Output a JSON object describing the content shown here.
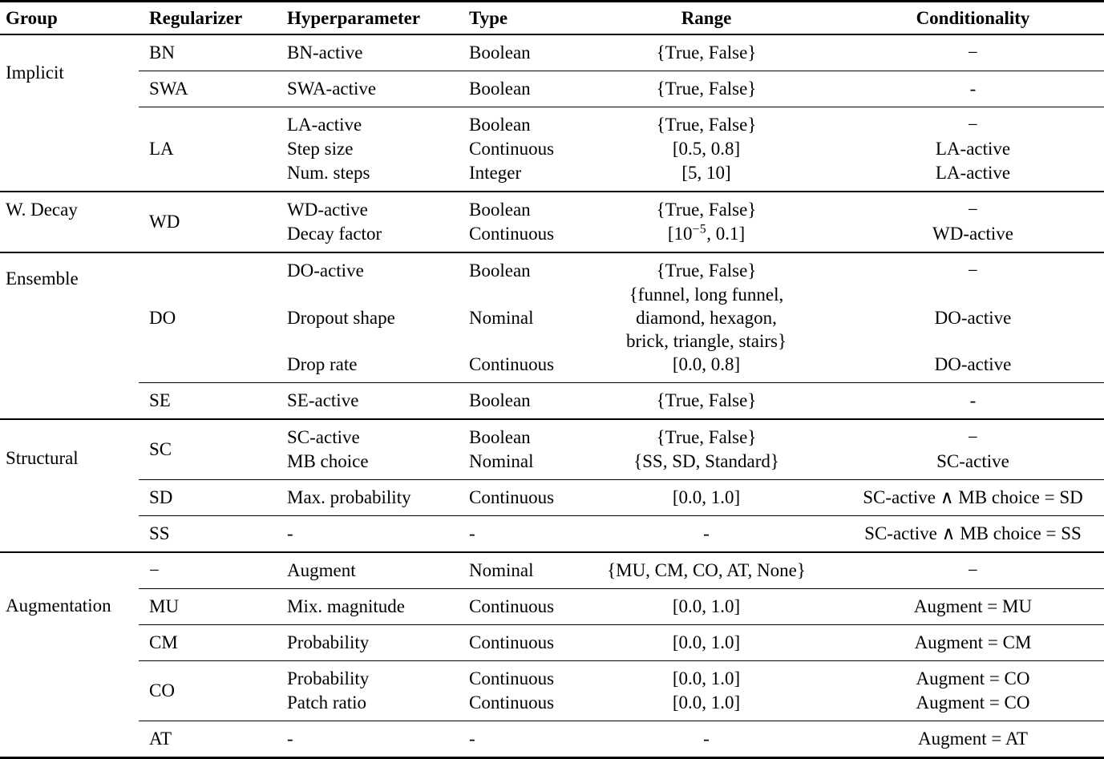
{
  "header": {
    "group": "Group",
    "regularizer": "Regularizer",
    "hyperparameter": "Hyperparameter",
    "type": "Type",
    "range": "Range",
    "conditionality": "Conditionality"
  },
  "groups": [
    {
      "label": "Implicit",
      "blocks": [
        {
          "regularizer": "BN",
          "rows": [
            {
              "hyperparameter": "BN-active",
              "type": "Boolean",
              "range": "{True, False}",
              "conditionality": "−"
            }
          ]
        },
        {
          "regularizer": "SWA",
          "rows": [
            {
              "hyperparameter": "SWA-active",
              "type": "Boolean",
              "range": "{True, False}",
              "conditionality": "-"
            }
          ]
        },
        {
          "regularizer": "LA",
          "rows": [
            {
              "hyperparameter": "LA-active",
              "type": "Boolean",
              "range": "{True, False}",
              "conditionality": "−"
            },
            {
              "hyperparameter": "Step size",
              "type": "Continuous",
              "range": "[0.5, 0.8]",
              "conditionality": "LA-active"
            },
            {
              "hyperparameter": "Num. steps",
              "type": "Integer",
              "range": "[5, 10]",
              "conditionality": "LA-active"
            }
          ]
        }
      ]
    },
    {
      "label": "W. Decay",
      "blocks": [
        {
          "regularizer": "WD",
          "rows": [
            {
              "hyperparameter": "WD-active",
              "type": "Boolean",
              "range": "{True, False}",
              "conditionality": "−"
            },
            {
              "hyperparameter": "Decay factor",
              "type": "Continuous",
              "range_parts": {
                "pre": "[10",
                "sup": "−5",
                "post": ", 0.1]"
              },
              "conditionality": "WD-active"
            }
          ]
        }
      ]
    },
    {
      "label": "Ensemble",
      "blocks": [
        {
          "regularizer": "DO",
          "rows": [
            {
              "hyperparameter": "DO-active",
              "type": "Boolean",
              "range": "{True, False}",
              "conditionality": "−"
            },
            {
              "hyperparameter": "Dropout shape",
              "type": "Nominal",
              "range_lines": [
                "{funnel, long funnel,",
                "diamond, hexagon,",
                "brick, triangle, stairs}"
              ],
              "conditionality": "DO-active"
            },
            {
              "hyperparameter": "Drop rate",
              "type": "Continuous",
              "range": "[0.0, 0.8]",
              "conditionality": "DO-active"
            }
          ]
        },
        {
          "regularizer": "SE",
          "rows": [
            {
              "hyperparameter": "SE-active",
              "type": "Boolean",
              "range": "{True, False}",
              "conditionality": "-"
            }
          ]
        }
      ]
    },
    {
      "label": "Structural",
      "blocks": [
        {
          "regularizer": "SC",
          "rows": [
            {
              "hyperparameter": "SC-active",
              "type": "Boolean",
              "range": "{True, False}",
              "conditionality": "−"
            },
            {
              "hyperparameter": "MB choice",
              "type": "Nominal",
              "range": "{SS, SD, Standard}",
              "conditionality": "SC-active"
            }
          ]
        },
        {
          "regularizer": "SD",
          "rows": [
            {
              "hyperparameter": "Max. probability",
              "type": "Continuous",
              "range": "[0.0, 1.0]",
              "conditionality": "SC-active ∧ MB choice = SD"
            }
          ]
        },
        {
          "regularizer": "SS",
          "rows": [
            {
              "hyperparameter": "-",
              "type": "-",
              "range": "-",
              "conditionality": "SC-active ∧ MB choice = SS"
            }
          ]
        }
      ]
    },
    {
      "label": "Augmentation",
      "blocks": [
        {
          "regularizer": "−",
          "rows": [
            {
              "hyperparameter": "Augment",
              "type": "Nominal",
              "range": "{MU, CM, CO, AT, None}",
              "conditionality": "−"
            }
          ]
        },
        {
          "regularizer": "MU",
          "rows": [
            {
              "hyperparameter": "Mix. magnitude",
              "type": "Continuous",
              "range": "[0.0, 1.0]",
              "conditionality": "Augment = MU"
            }
          ]
        },
        {
          "regularizer": "CM",
          "rows": [
            {
              "hyperparameter": "Probability",
              "type": "Continuous",
              "range": "[0.0, 1.0]",
              "conditionality": "Augment = CM"
            }
          ]
        },
        {
          "regularizer": "CO",
          "rows": [
            {
              "hyperparameter": "Probability",
              "type": "Continuous",
              "range": "[0.0, 1.0]",
              "conditionality": "Augment = CO"
            },
            {
              "hyperparameter": "Patch ratio",
              "type": "Continuous",
              "range": "[0.0, 1.0]",
              "conditionality": "Augment = CO"
            }
          ]
        },
        {
          "regularizer": "AT",
          "rows": [
            {
              "hyperparameter": "-",
              "type": "-",
              "range": "-",
              "conditionality": "Augment = AT"
            }
          ]
        }
      ]
    }
  ]
}
